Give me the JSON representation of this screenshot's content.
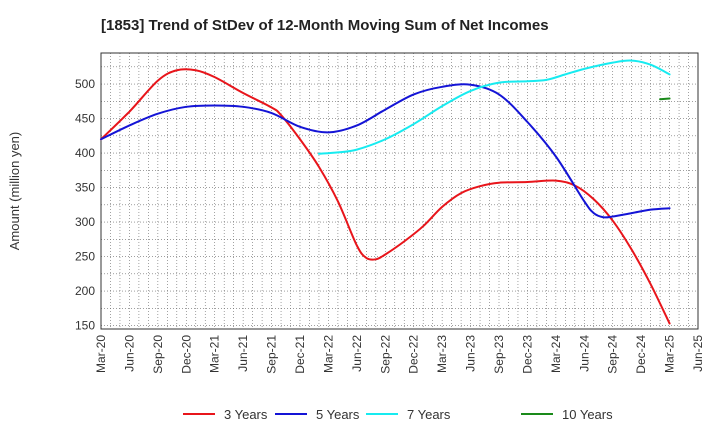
{
  "chart_data": {
    "type": "line",
    "title": "[1853]  Trend of StDev of 12-Month Moving Sum of Net Incomes",
    "ylabel": "Amount (million yen)",
    "xlabel": "",
    "ylim": [
      145,
      545
    ],
    "yticks": [
      150,
      200,
      250,
      300,
      350,
      400,
      450,
      500
    ],
    "x_start": "Mar-20",
    "xticks": [
      "Mar-20",
      "Jun-20",
      "Sep-20",
      "Dec-20",
      "Mar-21",
      "Jun-21",
      "Sep-21",
      "Dec-21",
      "Mar-22",
      "Jun-22",
      "Sep-22",
      "Dec-22",
      "Mar-23",
      "Jun-23",
      "Sep-23",
      "Dec-23",
      "Mar-24",
      "Jun-24",
      "Sep-24",
      "Dec-24",
      "Mar-25",
      "Jun-25"
    ],
    "grid": true,
    "legend_position": "bottom",
    "series": [
      {
        "name": "3 Years",
        "color": "#e8151b",
        "points": [
          [
            "Mar-20",
            420
          ],
          [
            "Jun-20",
            460
          ],
          [
            "Sep-20",
            505
          ],
          [
            "Nov-20",
            520
          ],
          [
            "Jan-21",
            520
          ],
          [
            "Mar-21",
            510
          ],
          [
            "Jun-21",
            487
          ],
          [
            "Sep-21",
            466
          ],
          [
            "Oct-21",
            455
          ],
          [
            "Dec-21",
            420
          ],
          [
            "Feb-22",
            380
          ],
          [
            "Apr-22",
            330
          ],
          [
            "Jun-22",
            266
          ],
          [
            "Jul-22",
            248
          ],
          [
            "Aug-22",
            246
          ],
          [
            "Sep-22",
            253
          ],
          [
            "Nov-22",
            272
          ],
          [
            "Jan-23",
            294
          ],
          [
            "Mar-23",
            322
          ],
          [
            "May-23",
            342
          ],
          [
            "Jul-23",
            352
          ],
          [
            "Sep-23",
            357
          ],
          [
            "Dec-23",
            358
          ],
          [
            "Mar-24",
            360
          ],
          [
            "May-24",
            353
          ],
          [
            "Jul-24",
            333
          ],
          [
            "Sep-24",
            302
          ],
          [
            "Nov-24",
            260
          ],
          [
            "Jan-25",
            210
          ],
          [
            "Mar-25",
            153
          ]
        ]
      },
      {
        "name": "5 Years",
        "color": "#1414d6",
        "points": [
          [
            "Mar-20",
            420
          ],
          [
            "Jun-20",
            440
          ],
          [
            "Sep-20",
            457
          ],
          [
            "Dec-20",
            467
          ],
          [
            "Mar-21",
            469
          ],
          [
            "Jun-21",
            467
          ],
          [
            "Sep-21",
            458
          ],
          [
            "Dec-21",
            438
          ],
          [
            "Mar-22",
            430
          ],
          [
            "Jun-22",
            440
          ],
          [
            "Sep-22",
            463
          ],
          [
            "Dec-22",
            485
          ],
          [
            "Mar-23",
            496
          ],
          [
            "Jun-23",
            499
          ],
          [
            "Sep-23",
            485
          ],
          [
            "Dec-23",
            445
          ],
          [
            "Mar-24",
            395
          ],
          [
            "Jun-24",
            330
          ],
          [
            "Jul-24",
            313
          ],
          [
            "Aug-24",
            307
          ],
          [
            "Sep-24",
            308
          ],
          [
            "Nov-24",
            313
          ],
          [
            "Jan-25",
            318
          ],
          [
            "Mar-25",
            320
          ]
        ]
      },
      {
        "name": "7 Years",
        "color": "#17ebf0",
        "points": [
          [
            "Feb-22",
            399
          ],
          [
            "Apr-22",
            401
          ],
          [
            "Jun-22",
            405
          ],
          [
            "Sep-22",
            420
          ],
          [
            "Dec-22",
            442
          ],
          [
            "Mar-23",
            468
          ],
          [
            "Jun-23",
            490
          ],
          [
            "Sep-23",
            502
          ],
          [
            "Dec-23",
            504
          ],
          [
            "Feb-24",
            506
          ],
          [
            "Apr-24",
            514
          ],
          [
            "Jun-24",
            522
          ],
          [
            "Sep-24",
            531
          ],
          [
            "Nov-24",
            534
          ],
          [
            "Jan-25",
            528
          ],
          [
            "Mar-25",
            514
          ]
        ]
      },
      {
        "name": "10 Years",
        "color": "#1a8a1a",
        "points": [
          [
            "Feb-25",
            478
          ],
          [
            "Mar-25",
            479
          ]
        ]
      }
    ]
  }
}
